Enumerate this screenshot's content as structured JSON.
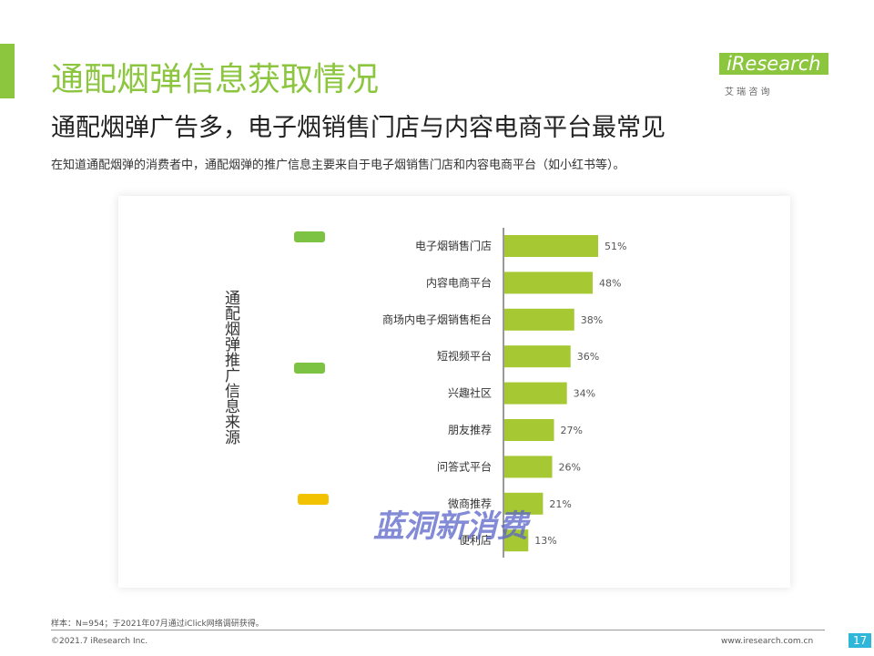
{
  "header": {
    "title": "通配烟弹信息获取情况",
    "subtitle": "通配烟弹广告多，电子烟销售门店与内容电商平台最常见",
    "description": "在知道通配烟弹的消费者中，通配烟弹的推广信息主要来自于电子烟销售门店和内容电商平台（如小红书等）。"
  },
  "logo": {
    "name": "iResearch",
    "cn": "艾 瑞 咨 询"
  },
  "chart_data": {
    "type": "bar",
    "orientation": "horizontal",
    "y_label": "通配烟弹推广信息来源",
    "categories": [
      "电子烟销售门店",
      "内容电商平台",
      "商场内电子烟销售柜台",
      "短视频平台",
      "兴趣社区",
      "朋友推荐",
      "问答式平台",
      "微商推荐",
      "便利店"
    ],
    "values": [
      51,
      48,
      38,
      36,
      34,
      27,
      26,
      21,
      13
    ],
    "value_labels": [
      "51%",
      "48%",
      "38%",
      "36%",
      "34%",
      "27%",
      "26%",
      "21%",
      "13%"
    ],
    "color": "#a6c832"
  },
  "watermark": "蓝洞新消费",
  "footer": {
    "note": "样本：N=954；于2021年07月通过iClick网络调研获得。",
    "copyright": "©2021.7 iResearch Inc.",
    "url": "www.iresearch.com.cn",
    "page": "17"
  }
}
